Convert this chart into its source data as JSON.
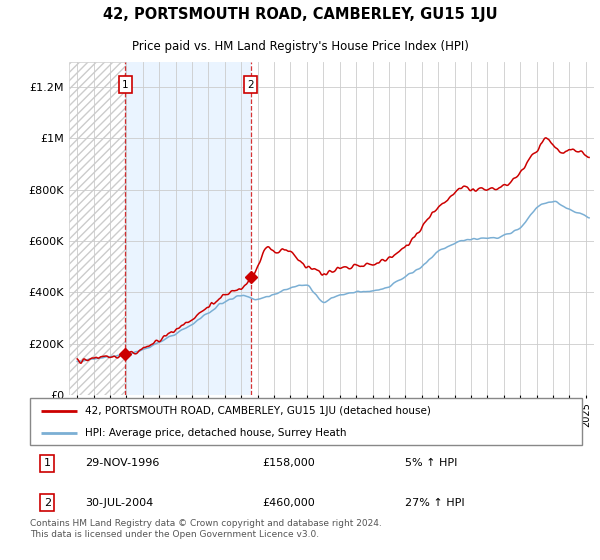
{
  "title": "42, PORTSMOUTH ROAD, CAMBERLEY, GU15 1JU",
  "subtitle": "Price paid vs. HM Land Registry's House Price Index (HPI)",
  "legend_line1": "42, PORTSMOUTH ROAD, CAMBERLEY, GU15 1JU (detached house)",
  "legend_line2": "HPI: Average price, detached house, Surrey Heath",
  "footnote": "Contains HM Land Registry data © Crown copyright and database right 2024.\nThis data is licensed under the Open Government Licence v3.0.",
  "transaction1_date": "29-NOV-1996",
  "transaction1_price": "£158,000",
  "transaction1_hpi": "5% ↑ HPI",
  "transaction1_year": 1996.92,
  "transaction1_value": 158000,
  "transaction2_date": "30-JUL-2004",
  "transaction2_price": "£460,000",
  "transaction2_hpi": "27% ↑ HPI",
  "transaction2_year": 2004.58,
  "transaction2_value": 460000,
  "red_color": "#cc0000",
  "blue_color": "#7bafd4",
  "bg_color": "#ffffff",
  "plot_bg_color": "#ffffff",
  "shade_color": "#ddeeff",
  "hatch_color": "#cccccc",
  "grid_color": "#cccccc",
  "ylim": [
    0,
    1300000
  ],
  "xlim_start": 1993.5,
  "xlim_end": 2025.5
}
